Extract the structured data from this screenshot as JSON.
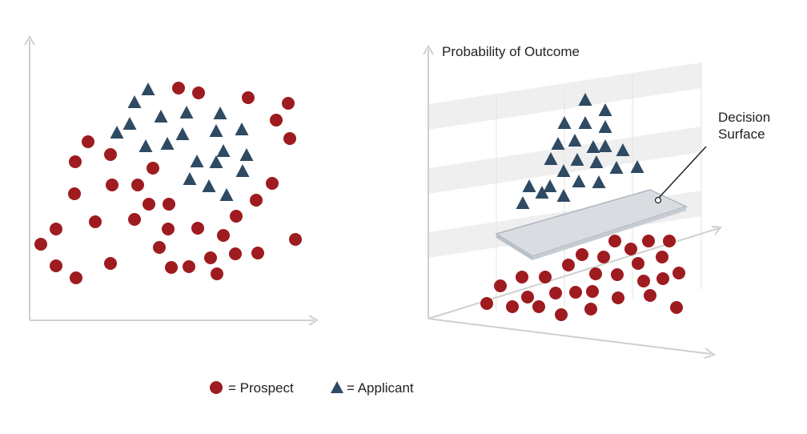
{
  "diagram": {
    "right_panel": {
      "axis_label": "Probability of Outcome",
      "surface_label_line1": "Decision",
      "surface_label_line2": "Surface"
    },
    "legend": {
      "prospect_label": "= Prospect",
      "applicant_label": "= Applicant"
    }
  },
  "colors": {
    "prospect": "#9e1b1f",
    "applicant": "#2f4a63",
    "axis": "#cfcfcf",
    "band": "#efefef",
    "surface": "#d9dde2"
  },
  "icons": {
    "prospect": "circle-icon",
    "applicant": "triangle-icon"
  }
}
